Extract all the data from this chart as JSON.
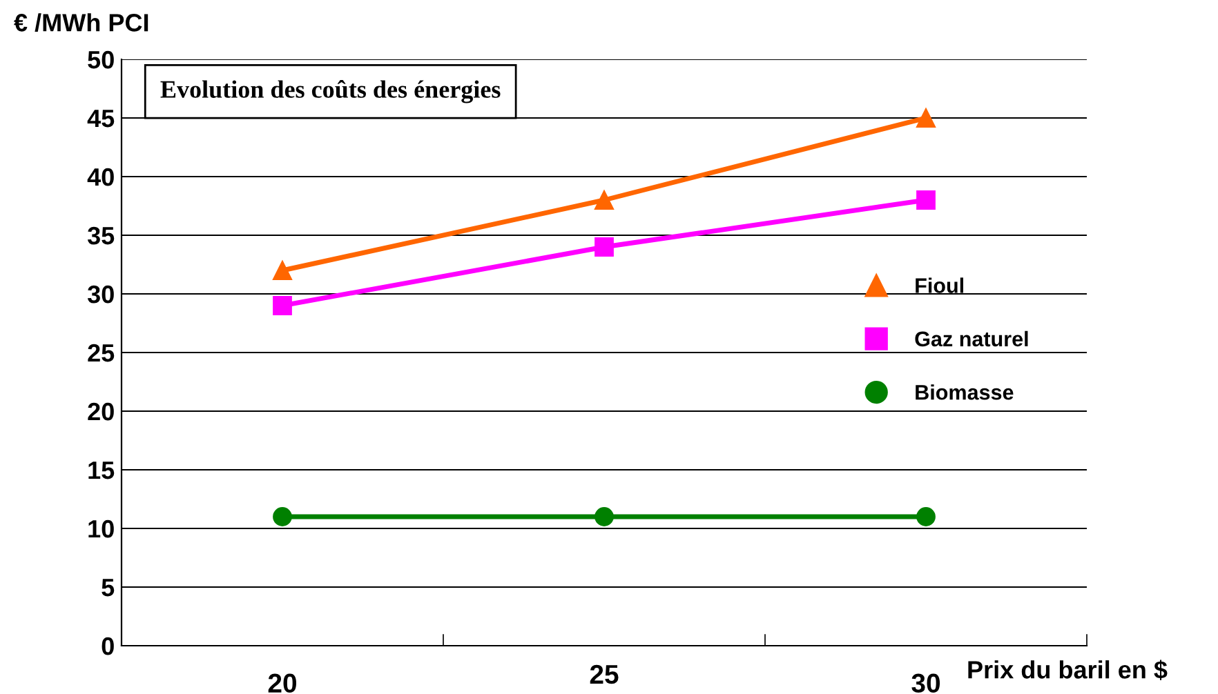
{
  "chart_data": {
    "type": "line",
    "title": "Evolution des coûts des énergies",
    "ylabel": "€ /MWh PCI",
    "xlabel": "Prix du baril en $",
    "categories": [
      "20",
      "25",
      "30"
    ],
    "series": [
      {
        "name": "Fioul",
        "color": "#ff6600",
        "marker": "triangle",
        "values": [
          32,
          38,
          45
        ]
      },
      {
        "name": "Gaz naturel",
        "color": "#ff00ff",
        "marker": "square",
        "values": [
          29,
          34,
          38
        ]
      },
      {
        "name": "Biomasse",
        "color": "#008000",
        "marker": "circle",
        "values": [
          11,
          11,
          11
        ]
      }
    ],
    "ylim": [
      0,
      50
    ],
    "yticks": [
      0,
      5,
      10,
      15,
      20,
      25,
      30,
      35,
      40,
      45,
      50
    ],
    "grid": "y",
    "legend": "right",
    "line_style": "solid"
  }
}
